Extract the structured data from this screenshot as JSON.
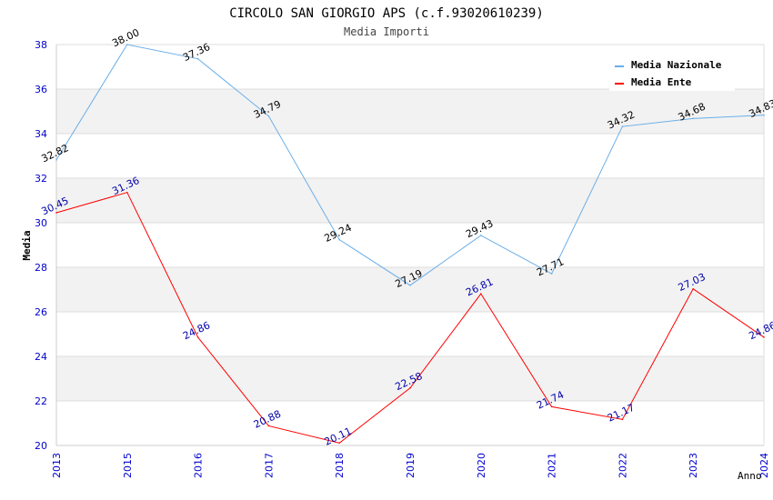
{
  "chart_data": {
    "type": "line",
    "title": "CIRCOLO SAN GIORGIO APS (c.f.93020610239)",
    "subtitle": "Media Importi",
    "xlabel": "Anno",
    "ylabel": "Media",
    "ylim": [
      20,
      38
    ],
    "yticks": [
      "20",
      "22",
      "24",
      "26",
      "28",
      "30",
      "32",
      "34",
      "36",
      "38"
    ],
    "categories": [
      "2013",
      "2015",
      "2016",
      "2017",
      "2018",
      "2019",
      "2020",
      "2021",
      "2022",
      "2023",
      "2024"
    ],
    "legend_position": "top-right",
    "series": [
      {
        "name": "Media Nazionale",
        "color": "#6aaee8",
        "label_color": "#000000",
        "values": [
          32.82,
          38.0,
          37.36,
          34.79,
          29.24,
          27.19,
          29.43,
          27.71,
          34.32,
          34.68,
          34.83
        ],
        "labels": [
          "32.82",
          "38.00",
          "37.36",
          "34.79",
          "29.24",
          "27.19",
          "29.43",
          "27.71",
          "34.32",
          "34.68",
          "34.83"
        ]
      },
      {
        "name": "Media Ente",
        "color": "#ff0000",
        "label_color": "#0000aa",
        "values": [
          30.45,
          31.36,
          24.86,
          20.88,
          20.11,
          22.58,
          26.81,
          21.74,
          21.17,
          27.03,
          24.86
        ],
        "labels": [
          "30.45",
          "31.36",
          "24.86",
          "20.88",
          "20.11",
          "22.58",
          "26.81",
          "21.74",
          "21.17",
          "27.03",
          "24.86"
        ]
      }
    ]
  }
}
